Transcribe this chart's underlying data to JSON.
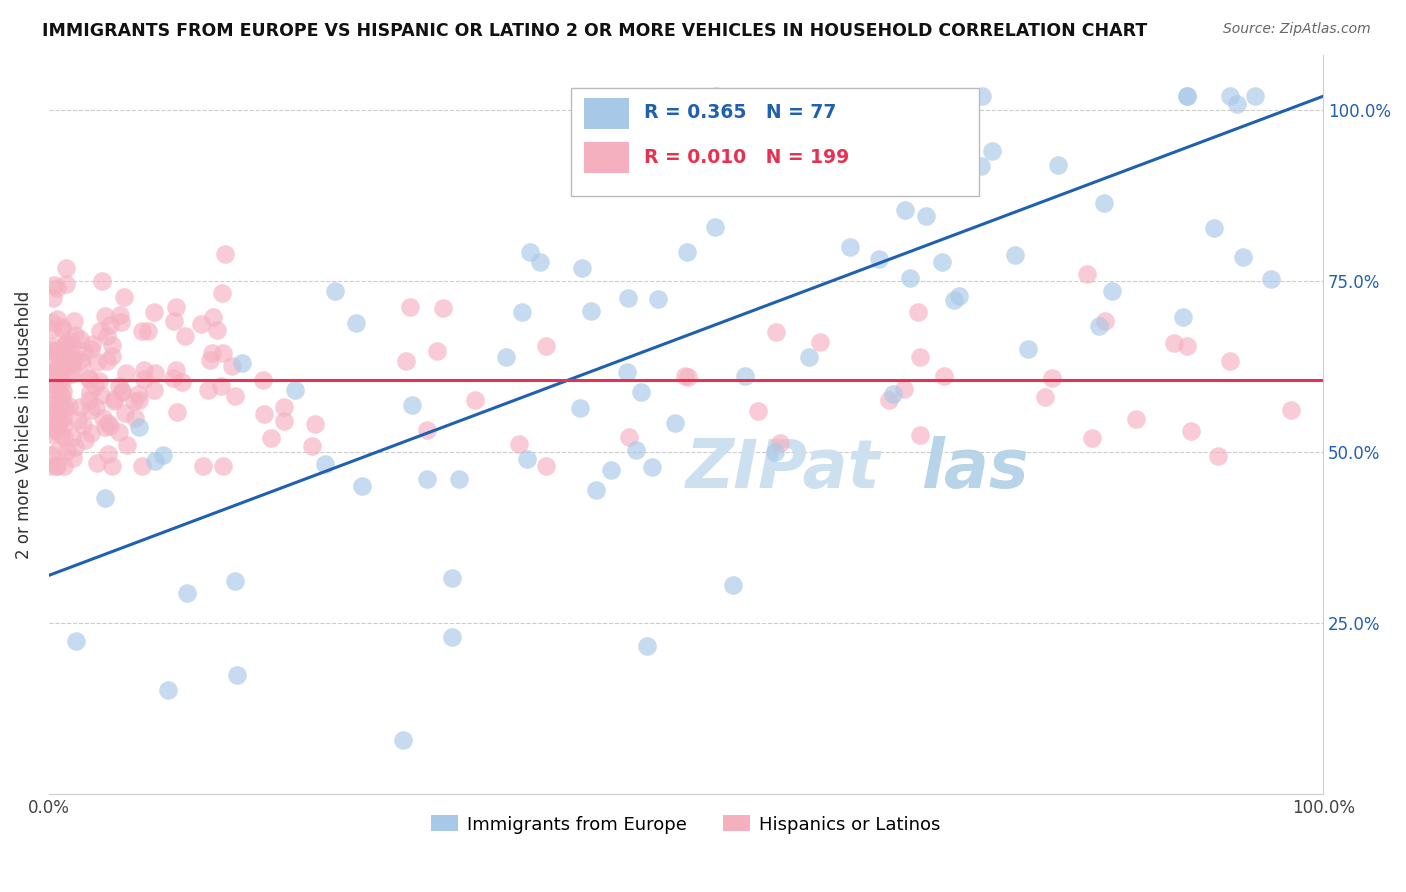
{
  "title": "IMMIGRANTS FROM EUROPE VS HISPANIC OR LATINO 2 OR MORE VEHICLES IN HOUSEHOLD CORRELATION CHART",
  "source": "Source: ZipAtlas.com",
  "ylabel": "2 or more Vehicles in Household",
  "xlim": [
    0,
    1
  ],
  "ylim": [
    0,
    1.08
  ],
  "blue_R": 0.365,
  "blue_N": 77,
  "pink_R": 0.01,
  "pink_N": 199,
  "legend_label_blue": "Immigrants from Europe",
  "legend_label_pink": "Hispanics or Latinos",
  "blue_color": "#a8c8e8",
  "pink_color": "#f5b0c0",
  "blue_line_color": "#2060b0",
  "pink_line_color": "#e83050",
  "title_color": "#111111",
  "source_color": "#666666",
  "R_N_color_blue": "#2060b0",
  "R_N_color_pink": "#e83050",
  "watermark_color": "#cce0f0",
  "blue_line_y0": 0.32,
  "blue_line_y1": 1.02,
  "pink_line_y0": 0.605,
  "pink_line_y1": 0.605
}
